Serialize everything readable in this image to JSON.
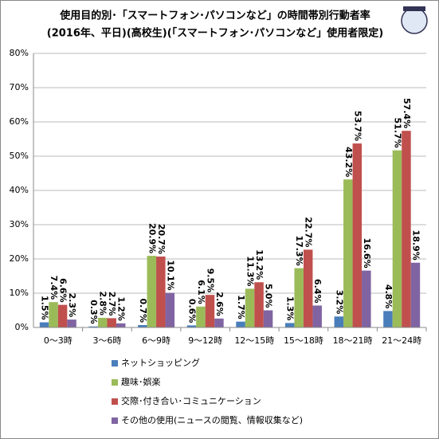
{
  "chart_data": {
    "type": "bar",
    "title": [
      "使用目的別･「スマートフォン･パソコンなど」の時間帯別行動者率",
      "(2016年、平日)(高校生)(「スマートフォン･パソコンなど」使用者限定)"
    ],
    "categories": [
      "0～3時",
      "3～6時",
      "6～9時",
      "9～12時",
      "12～15時",
      "15～18時",
      "18～21時",
      "21～24時"
    ],
    "series": [
      {
        "name": "ネットショッピング",
        "color": "#4a7ebb",
        "values": [
          1.5,
          0.3,
          0.7,
          0.6,
          1.7,
          1.3,
          3.2,
          4.8
        ],
        "value_labels": [
          "1.5%",
          "0.3%",
          "0.7%",
          "0.6%",
          "1.7%",
          "1.3%",
          "3.2%",
          "4.8%"
        ]
      },
      {
        "name": "趣味･娯楽",
        "color": "#9bbb59",
        "values": [
          7.4,
          2.8,
          20.9,
          6.1,
          11.3,
          17.3,
          43.2,
          51.7
        ],
        "value_labels": [
          "7.4%",
          "2.8%",
          "20.9%",
          "6.1%",
          "11.3%",
          "17.3%",
          "43.2%",
          "51.7%"
        ]
      },
      {
        "name": "交際･付き合い･コミュニケーション",
        "color": "#c0504d",
        "values": [
          6.6,
          2.7,
          20.7,
          9.5,
          13.2,
          22.7,
          53.7,
          57.4
        ],
        "value_labels": [
          "6.6%",
          "2.7%",
          "20.7%",
          "9.5%",
          "13.2%",
          "22.7%",
          "53.7%",
          "57.4%"
        ]
      },
      {
        "name": "その他の使用(ニュースの閲覧、情報収集など)",
        "color": "#8064a2",
        "values": [
          2.3,
          1.2,
          10.1,
          2.6,
          5.0,
          6.4,
          16.6,
          18.9
        ],
        "value_labels": [
          "2.3%",
          "1.2%",
          "10.1%",
          "2.6%",
          "5.0%",
          "6.4%",
          "16.6%",
          "18.9%"
        ]
      }
    ],
    "ylim": [
      0,
      80
    ],
    "yticks": [
      {
        "value": 0,
        "label": "0%"
      },
      {
        "value": 10,
        "label": "10%"
      },
      {
        "value": 20,
        "label": "20%"
      },
      {
        "value": 30,
        "label": "30%"
      },
      {
        "value": 40,
        "label": "40%"
      },
      {
        "value": 50,
        "label": "50%"
      },
      {
        "value": 60,
        "label": "60%"
      },
      {
        "value": 70,
        "label": "70%"
      },
      {
        "value": 80,
        "label": "80%"
      }
    ],
    "grid": true
  }
}
